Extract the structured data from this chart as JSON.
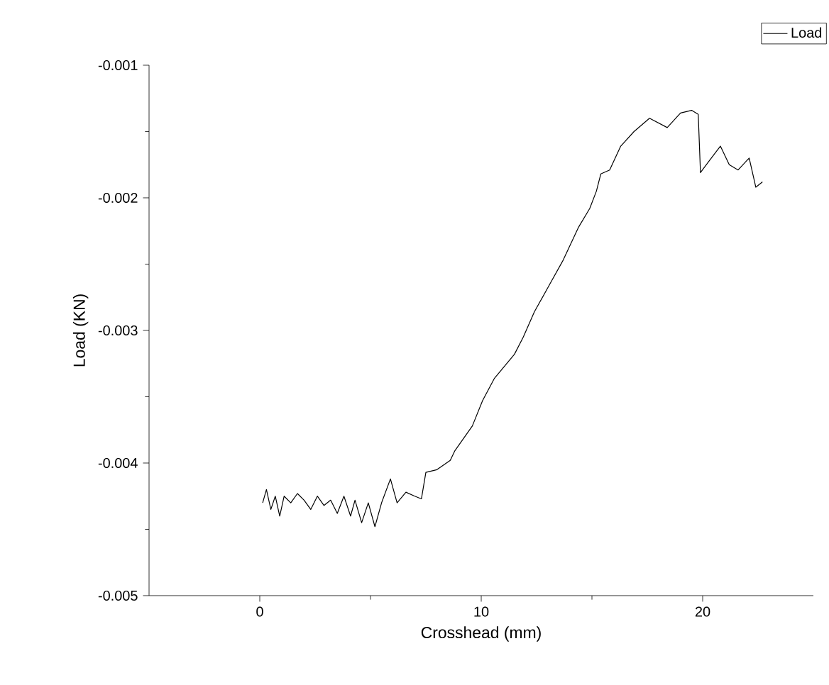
{
  "chart_data": {
    "type": "line",
    "xlabel": "Crosshead (mm)",
    "ylabel": "Load (KN)",
    "xlim": [
      -5,
      25
    ],
    "xticks": [
      0,
      10,
      20
    ],
    "ylim": [
      -0.005,
      -0.001
    ],
    "yticks": [
      -0.005,
      -0.004,
      -0.003,
      -0.002,
      -0.001
    ],
    "legend": "top right",
    "grid": false,
    "marker": "none",
    "line_style": "solid",
    "series": [
      {
        "name": "Load",
        "color": "#000000",
        "x": [
          0.13,
          0.3,
          0.5,
          0.7,
          0.9,
          1.1,
          1.4,
          1.7,
          2.0,
          2.3,
          2.6,
          2.9,
          3.2,
          3.5,
          3.8,
          4.1,
          4.3,
          4.6,
          4.9,
          5.2,
          5.5,
          5.9,
          6.2,
          6.6,
          7.0,
          7.3,
          7.5,
          8.0,
          8.6,
          8.8,
          9.6,
          10.06,
          10.6,
          11.5,
          11.9,
          12.4,
          13.1,
          13.7,
          14.4,
          14.9,
          15.2,
          15.4,
          15.8,
          16.3,
          16.9,
          17.6,
          18.4,
          19.0,
          19.5,
          19.8,
          19.9,
          20.3,
          20.8,
          21.2,
          21.6,
          22.1,
          22.4,
          22.7
        ],
        "values": [
          -0.0043,
          -0.0042,
          -0.00435,
          -0.00425,
          -0.0044,
          -0.00425,
          -0.0043,
          -0.00423,
          -0.00428,
          -0.00435,
          -0.00425,
          -0.00432,
          -0.00428,
          -0.00438,
          -0.00425,
          -0.0044,
          -0.00428,
          -0.00445,
          -0.0043,
          -0.00448,
          -0.0043,
          -0.00412,
          -0.0043,
          -0.00422,
          -0.00425,
          -0.00427,
          -0.00407,
          -0.00405,
          -0.00398,
          -0.00391,
          -0.00372,
          -0.00353,
          -0.00336,
          -0.00318,
          -0.00305,
          -0.00286,
          -0.00265,
          -0.00247,
          -0.00222,
          -0.00208,
          -0.00195,
          -0.00182,
          -0.00179,
          -0.00161,
          -0.0015,
          -0.0014,
          -0.00147,
          -0.00136,
          -0.00134,
          -0.00137,
          -0.00181,
          -0.00172,
          -0.00161,
          -0.00175,
          -0.00179,
          -0.0017,
          -0.00192,
          -0.00188
        ]
      }
    ]
  }
}
